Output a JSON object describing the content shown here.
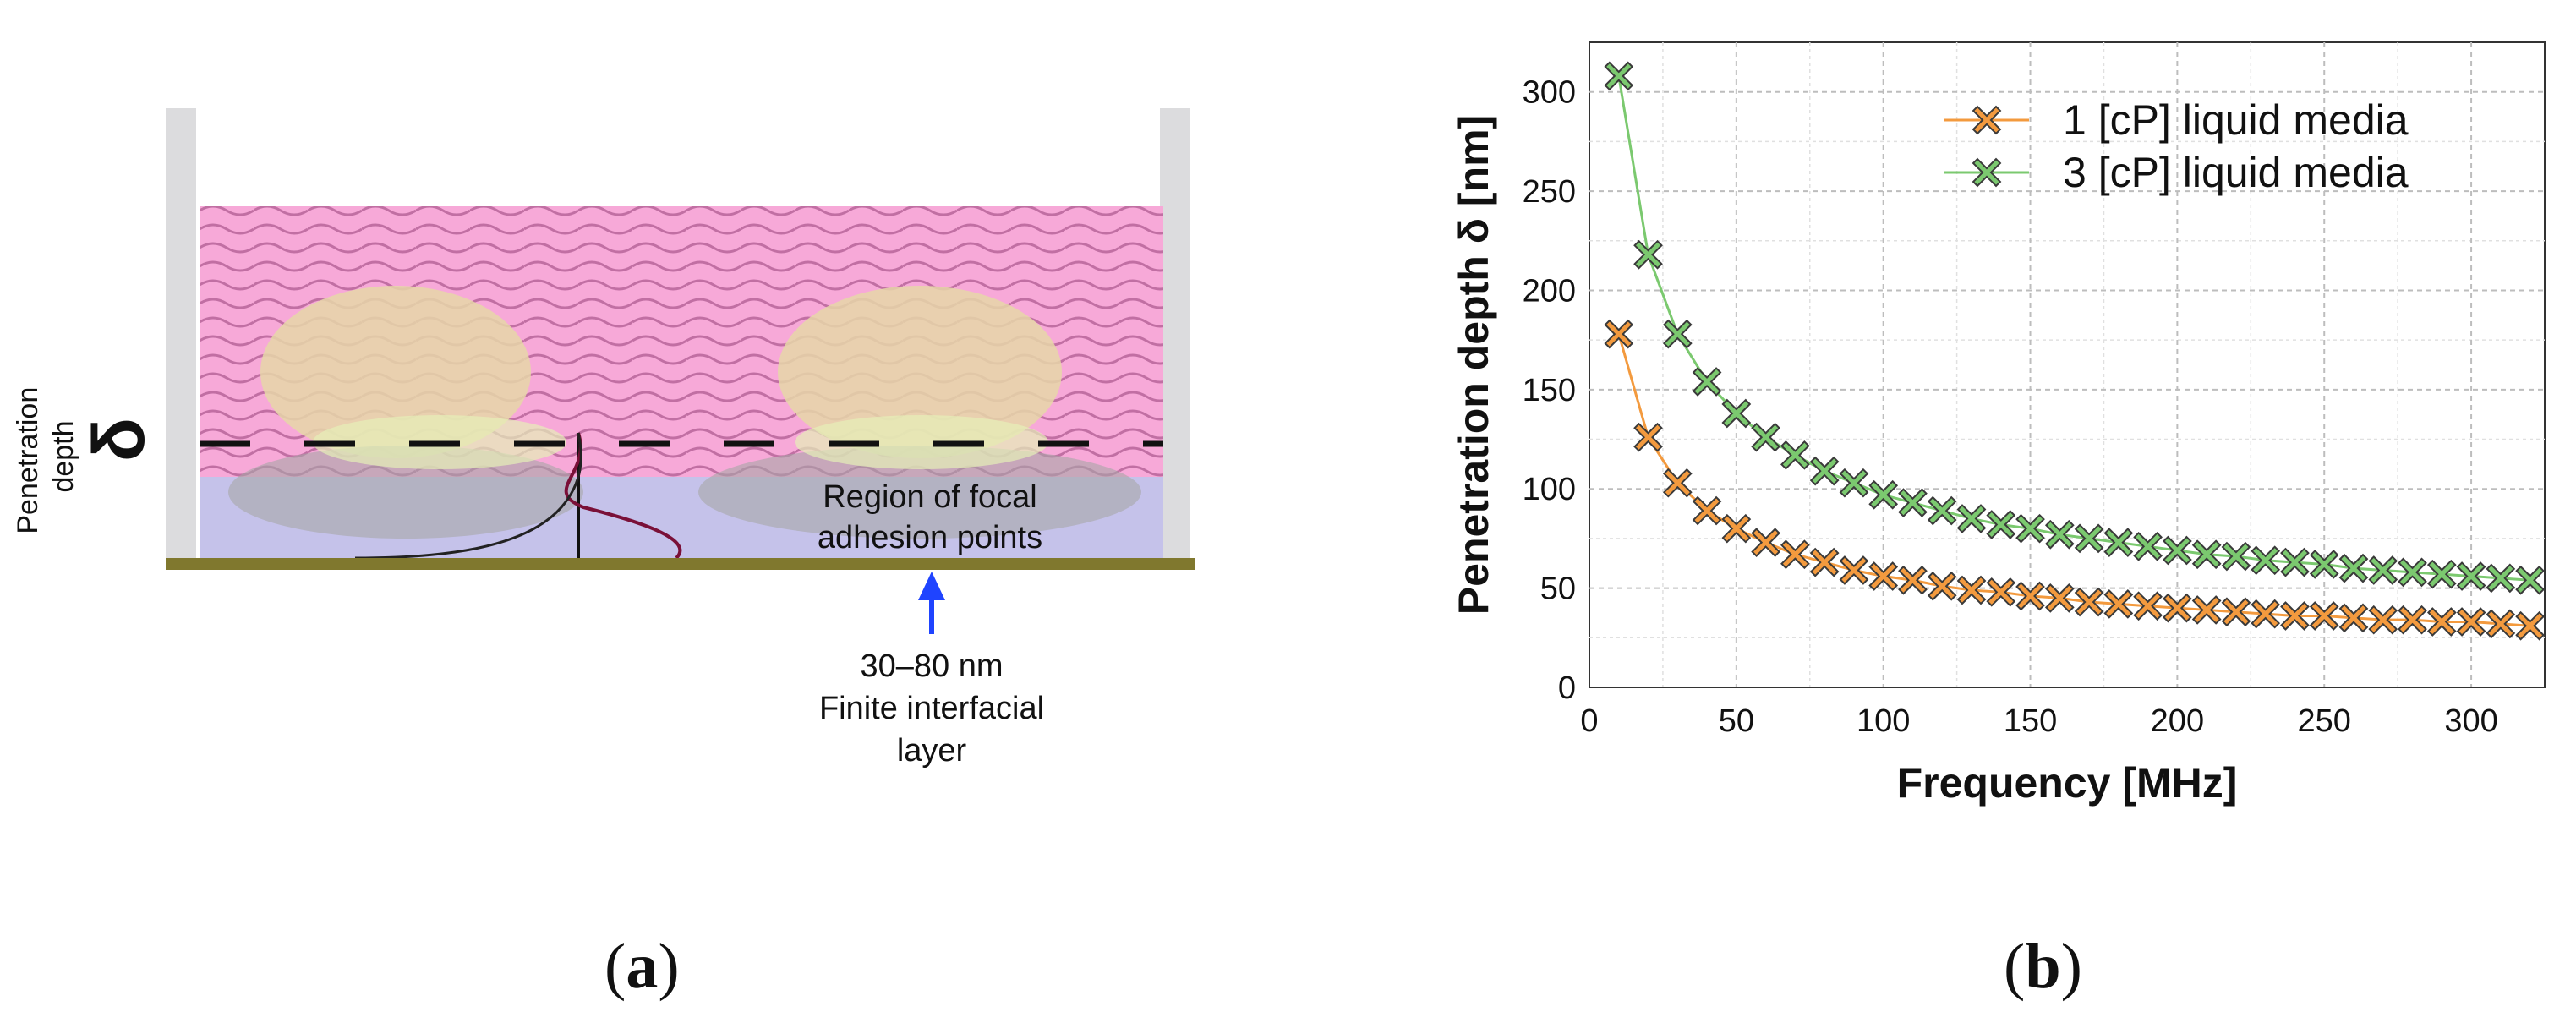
{
  "diagram": {
    "penetration_label_line1": "Penetration",
    "penetration_label_line2": "depth",
    "delta_symbol": "δ",
    "region_label_line1": "Region of focal",
    "region_label_line2": "adhesion points",
    "thickness_value": "30–80 nm",
    "layer_label_line1": "Finite interfacial",
    "layer_label_line2": "layer",
    "colors": {
      "liquid": "#f7a9d8",
      "wave": "#b7659a",
      "cell": "#e6d7a8",
      "interface": "#c5c2ea",
      "substrate": "#80782e",
      "wall": "#dcdcde",
      "arrow": "#1f44ff"
    }
  },
  "captions": {
    "a": "a",
    "b": "b"
  },
  "chart_data": {
    "type": "line",
    "xlabel": "Frequency [MHz]",
    "ylabel": "Penetration depth δ [nm]",
    "xlim": [
      0,
      325
    ],
    "ylim": [
      0,
      325
    ],
    "xticks": [
      0,
      50,
      100,
      150,
      200,
      250,
      300
    ],
    "yticks": [
      0,
      50,
      100,
      150,
      200,
      250,
      300
    ],
    "grid": true,
    "legend_position": "top-right",
    "series": [
      {
        "name": "1 [cP] liquid media",
        "color": "#f39a3e",
        "x": [
          10,
          20,
          30,
          40,
          50,
          60,
          70,
          80,
          90,
          100,
          110,
          120,
          130,
          140,
          150,
          160,
          170,
          180,
          190,
          200,
          210,
          220,
          230,
          240,
          250,
          260,
          270,
          280,
          290,
          300,
          310,
          320
        ],
        "values": [
          178,
          126,
          103,
          89,
          80,
          73,
          67,
          63,
          59,
          56,
          54,
          51,
          49,
          48,
          46,
          45,
          43,
          42,
          41,
          40,
          39,
          38,
          37,
          36,
          36,
          35,
          34,
          34,
          33,
          33,
          32,
          31
        ]
      },
      {
        "name": "3 [cP] liquid media",
        "color": "#7bc96f",
        "x": [
          10,
          20,
          30,
          40,
          50,
          60,
          70,
          80,
          90,
          100,
          110,
          120,
          130,
          140,
          150,
          160,
          170,
          180,
          190,
          200,
          210,
          220,
          230,
          240,
          250,
          260,
          270,
          280,
          290,
          300,
          310,
          320
        ],
        "values": [
          308,
          218,
          178,
          154,
          138,
          126,
          117,
          109,
          103,
          97,
          93,
          89,
          85,
          82,
          80,
          77,
          75,
          73,
          71,
          69,
          67,
          66,
          64,
          63,
          62,
          60,
          59,
          58,
          57,
          56,
          55,
          54
        ]
      }
    ]
  }
}
